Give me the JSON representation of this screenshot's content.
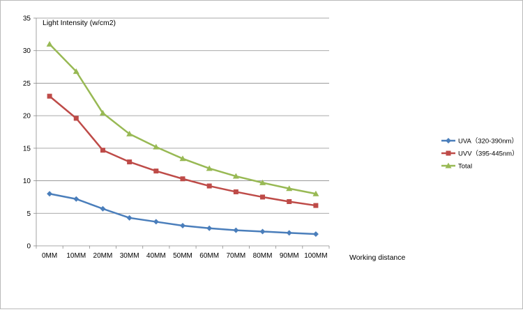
{
  "chart_data": {
    "type": "line",
    "title": "",
    "ylabel": "Light Intensity (w/cm2)",
    "xlabel": "Working distance",
    "ylim": [
      0,
      35
    ],
    "yticks": [
      0,
      5,
      10,
      15,
      20,
      25,
      30,
      35
    ],
    "grid": true,
    "legend_position": "right",
    "categories": [
      "0MM",
      "10MM",
      "20MM",
      "30MM",
      "40MM",
      "50MM",
      "60MM",
      "70MM",
      "80MM",
      "90MM",
      "100MM"
    ],
    "series": [
      {
        "name": "UVA（320-390nm）",
        "color": "#4a7ebb",
        "marker": "diamond",
        "values": [
          8.0,
          7.2,
          5.7,
          4.3,
          3.7,
          3.1,
          2.7,
          2.4,
          2.2,
          2.0,
          1.8
        ]
      },
      {
        "name": "UVV（395-445nm）",
        "color": "#be4b48",
        "marker": "square",
        "values": [
          23.0,
          19.6,
          14.7,
          12.9,
          11.5,
          10.3,
          9.2,
          8.3,
          7.5,
          6.8,
          6.2
        ]
      },
      {
        "name": "Total",
        "color": "#98b954",
        "marker": "triangle",
        "values": [
          31.0,
          26.8,
          20.4,
          17.2,
          15.2,
          13.4,
          11.9,
          10.7,
          9.7,
          8.8,
          8.0
        ]
      }
    ]
  }
}
